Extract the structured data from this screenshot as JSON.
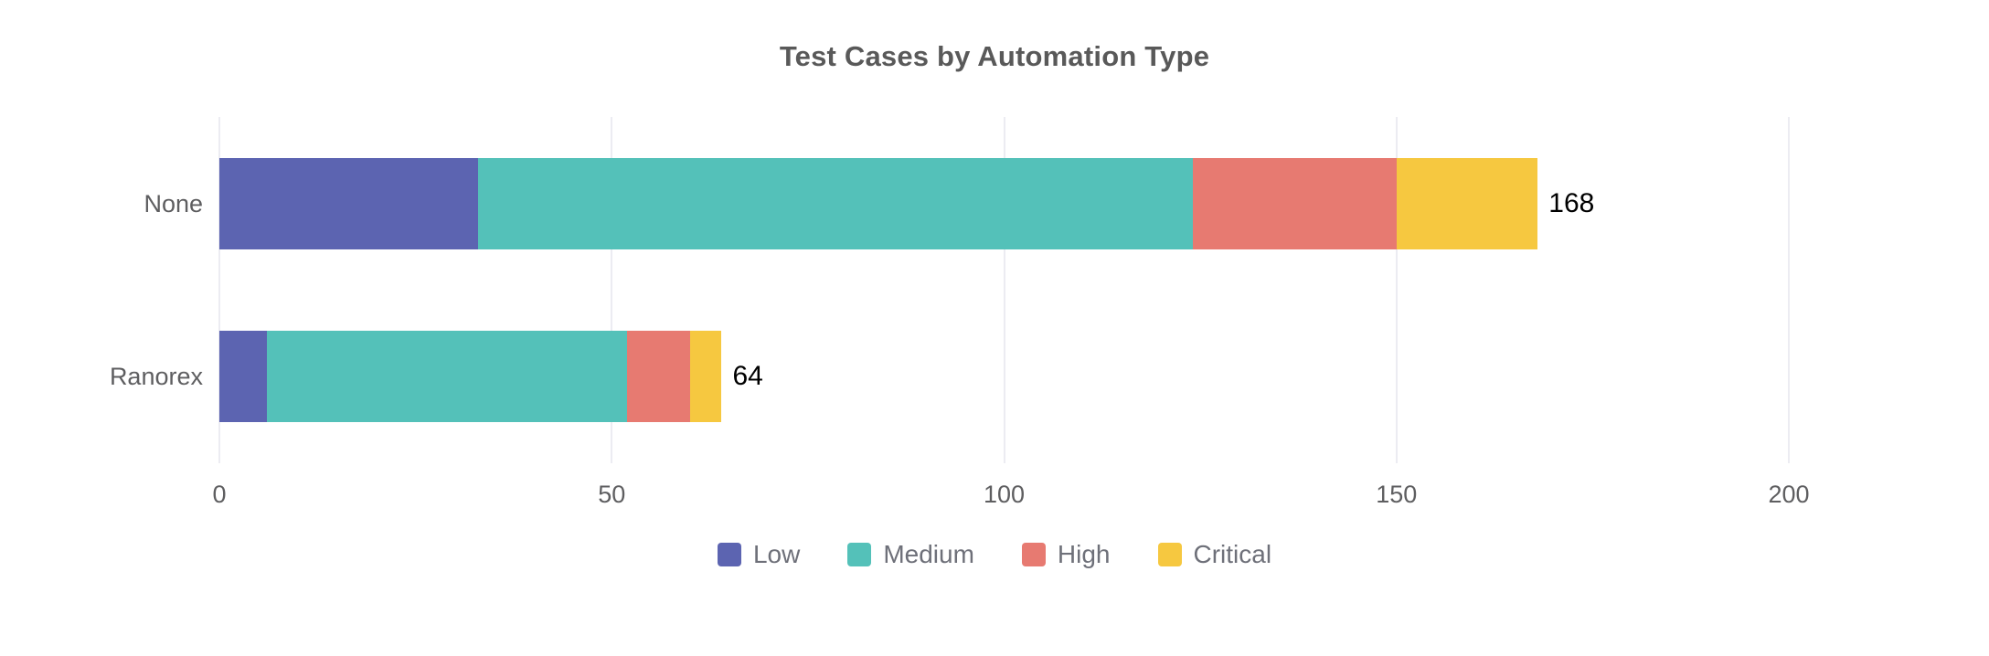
{
  "chart_data": {
    "type": "bar",
    "orientation": "horizontal",
    "stacked": true,
    "title": "Test Cases by Automation Type",
    "categories": [
      "None",
      "Ranorex"
    ],
    "series": [
      {
        "name": "Low",
        "color": "#5C64B1",
        "values": [
          33,
          6
        ]
      },
      {
        "name": "Medium",
        "color": "#54C1B9",
        "values": [
          91,
          46
        ]
      },
      {
        "name": "High",
        "color": "#E77A71",
        "values": [
          26,
          8
        ]
      },
      {
        "name": "Critical",
        "color": "#F6C840",
        "values": [
          18,
          4
        ]
      }
    ],
    "totals": [
      168,
      64
    ],
    "xlabel": "",
    "ylabel": "",
    "x_ticks": [
      0,
      50,
      100,
      150,
      200
    ],
    "xlim": [
      0,
      200
    ],
    "grid": true,
    "legend": {
      "position": "bottom",
      "items": [
        "Low",
        "Medium",
        "High",
        "Critical"
      ]
    }
  },
  "colors": {
    "background": "#FFFFFF",
    "grid_line": "#ECECF2",
    "title_text": "#595959",
    "axis_label": "#5E5E60",
    "value_label": "#000000",
    "legend_text": "#6E7079"
  }
}
